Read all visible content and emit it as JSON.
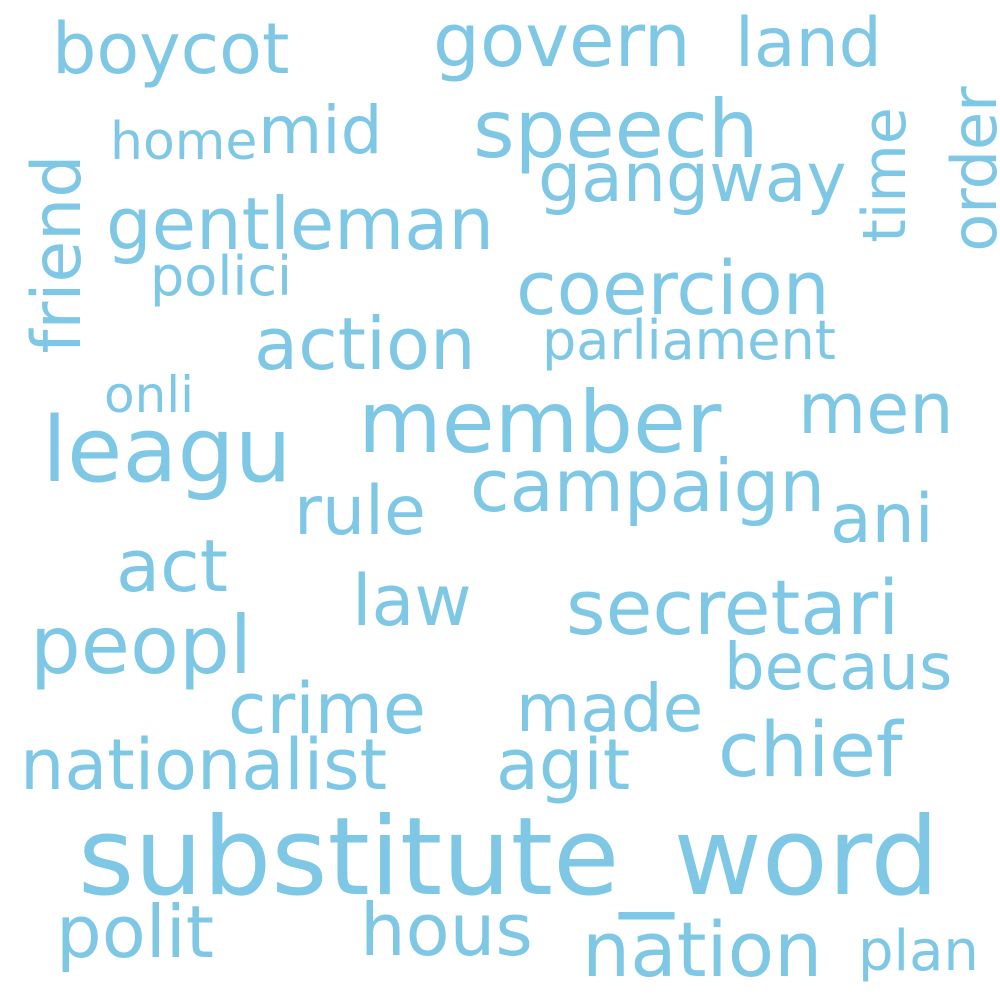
{
  "theme": {
    "word_color": "#7ec8e6",
    "background": "#ffffff"
  },
  "words": {
    "boycot": "boycot",
    "govern": "govern",
    "land": "land",
    "speech": "speech",
    "home": "home",
    "mid": "mid",
    "gangway": "gangway",
    "time": "time",
    "order": "order",
    "friend": "friend",
    "gentleman": "gentleman",
    "polici": "polici",
    "coercion": "coercion",
    "action": "action",
    "parliament": "parliament",
    "onli": "onli",
    "member": "member",
    "men": "men",
    "leagu": "leagu",
    "campaign": "campaign",
    "rule": "rule",
    "ani": "ani",
    "act": "act",
    "law": "law",
    "secretari": "secretari",
    "peopl": "peopl",
    "becaus": "becaus",
    "crime": "crime",
    "made": "made",
    "chief": "chief",
    "nationalist": "nationalist",
    "agit": "agit",
    "substitute_word": "substitute_word",
    "polit": "polit",
    "hous": "hous",
    "nation": "nation",
    "plan": "plan"
  }
}
